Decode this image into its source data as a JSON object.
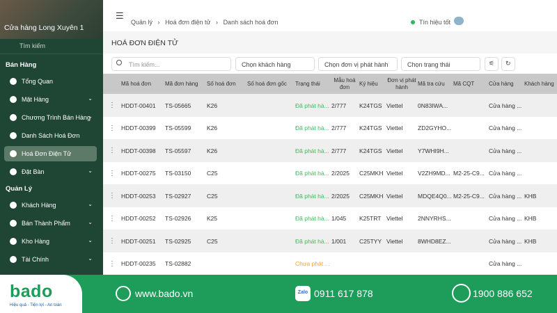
{
  "sidebar": {
    "store": "Cửa hàng Long Xuyên 1",
    "search_placeholder": "Tìm kiếm",
    "sections": [
      {
        "title": "Bán Hàng",
        "items": [
          {
            "label": "Tổng Quan"
          },
          {
            "label": "Mặt Hàng",
            "submenu": true
          },
          {
            "label": "Chương Trình Bán Hàng",
            "submenu": true
          },
          {
            "label": "Danh Sách Hoá Đơn"
          },
          {
            "label": "Hoá Đơn Điện Tử",
            "active": true
          },
          {
            "label": "Đặt Bàn",
            "submenu": true
          }
        ]
      },
      {
        "title": "Quản Lý",
        "items": [
          {
            "label": "Khách Hàng",
            "submenu": true
          },
          {
            "label": "Bán Thành Phẩm",
            "submenu": true
          },
          {
            "label": "Kho Hàng",
            "submenu": true
          },
          {
            "label": "Tài Chính",
            "submenu": true
          }
        ]
      }
    ]
  },
  "topbar": {
    "breadcrumb": [
      "Quản lý",
      "Hoá đơn điện tử",
      "Danh sách hoá đơn"
    ],
    "signal": "Tín hiệu tốt"
  },
  "page_title": "HOÁ ĐƠN ĐIỆN TỬ",
  "filters": {
    "search_placeholder": "Tìm kiếm...",
    "selects": [
      "Chọn khách hàng",
      "Chọn đơn vị phát hành",
      "Chọn trạng thái"
    ]
  },
  "table": {
    "columns": [
      "Mã hoá đơn",
      "Mã đơn hàng",
      "Số hoá đơn",
      "Số hoá đơn gốc",
      "Trạng thái",
      "Mẫu hoá đơn",
      "Ký hiệu",
      "Đơn vị phát hành",
      "Mã tra cứu",
      "Mã CQT",
      "Cửa hàng",
      "Khách hàng"
    ],
    "rows": [
      [
        "HDDT-00401",
        "TS-05665",
        "K26",
        null,
        "Đã phát hà...",
        "2/777",
        "K24TGS",
        "Viettel",
        "0N83IWA...",
        null,
        "Cửa hàng ...",
        null
      ],
      [
        "HDDT-00399",
        "TS-05599",
        "K26",
        null,
        "Đã phát hà...",
        "2/777",
        "K24TGS",
        "Viettel",
        "ZD2GYHO...",
        null,
        "Cửa hàng ...",
        null
      ],
      [
        "HDDT-00398",
        "TS-05597",
        "K26",
        null,
        "Đã phát hà...",
        "2/777",
        "K24TGS",
        "Viettel",
        "Y7WHI9H...",
        null,
        "Cửa hàng ...",
        null
      ],
      [
        "HDDT-00275",
        "TS-03150",
        "C25",
        null,
        "Đã phát hà...",
        "2/2025",
        "C25MKH",
        "Viettel",
        "V2ZH9MD...",
        "M2-25-C9...",
        "Cửa hàng ...",
        null
      ],
      [
        "HDDT-00253",
        "TS-02927",
        "C25",
        null,
        "Đã phát hà...",
        "2/2025",
        "C25MKH",
        "Viettel",
        "MDQE4Q0...",
        "M2-25-C9...",
        "Cửa hàng ...",
        "KHB"
      ],
      [
        "HDDT-00252",
        "TS-02926",
        "K25",
        null,
        "Đã phát hà...",
        "1/045",
        "K25TRT",
        "Viettel",
        "2NNYRHS...",
        null,
        "Cửa hàng ...",
        "KHB"
      ],
      [
        "HDDT-00251",
        "TS-02925",
        "C25",
        null,
        "Đã phát hà...",
        "1/001",
        "C25TYY",
        "Viettel",
        "8WHD8EZ...",
        null,
        "Cửa hàng ...",
        "KHB"
      ],
      [
        "HDDT-00235",
        "TS-02882",
        null,
        null,
        "Chưa phát ...",
        null,
        null,
        null,
        null,
        null,
        "Cửa hàng ...",
        null
      ]
    ],
    "status_colors": [
      "#3cb95f",
      "#3cb95f",
      "#3cb95f",
      "#3cb95f",
      "#3cb95f",
      "#3cb95f",
      "#3cb95f",
      "#f0a030"
    ]
  },
  "footer": {
    "logo": "bado",
    "tagline": "Hiệu quả - Tiện lợi - An toàn",
    "website": "www.bado.vn",
    "zalo_label": "Zalo",
    "zalo_phone": "0911 617 878",
    "hotline": "1900 886 652"
  }
}
